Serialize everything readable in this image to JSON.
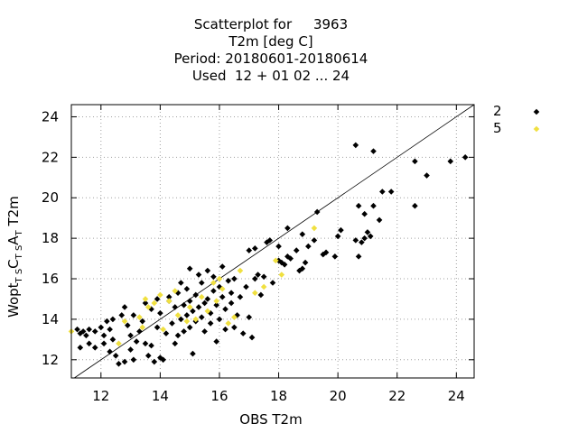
{
  "title": {
    "line1": "Scatterplot for     3963",
    "line2": "T2m [deg C]",
    "line3": "Period: 20180601-20180614",
    "line4": "Used  12 + 01 02 ... 24"
  },
  "colors": {
    "series_2": "#000000",
    "series_5": "#f0e040",
    "grid": "#a0a0a0"
  },
  "chart_data": {
    "type": "scatter",
    "title": "Scatterplot for     3963 / T2m [deg C] / Period: 20180601-20180614 / Used  12 + 01 02 ... 24",
    "xlabel": "OBS T2m",
    "ylabel": {
      "base": "Wopt",
      "sub1": "T S",
      "mid1": "C",
      "sub2": "T S",
      "mid2": "A",
      "sub3": "T",
      "tail": " T2m"
    },
    "xlim": [
      11,
      24.6
    ],
    "ylim": [
      11.1,
      24.6
    ],
    "xticks": [
      "12",
      "14",
      "16",
      "18",
      "20",
      "22",
      "24"
    ],
    "yticks": [
      "12",
      "14",
      "16",
      "18",
      "20",
      "22",
      "24"
    ],
    "grid": true,
    "diagonal": true,
    "legend_position": "top-right outside",
    "series": [
      {
        "name": "2",
        "marker": "diamond",
        "points": [
          [
            11.2,
            13.5
          ],
          [
            11.3,
            13.3
          ],
          [
            11.4,
            13.4
          ],
          [
            11.5,
            13.2
          ],
          [
            11.6,
            13.5
          ],
          [
            11.8,
            13.4
          ],
          [
            11.3,
            12.6
          ],
          [
            11.6,
            12.8
          ],
          [
            11.8,
            12.6
          ],
          [
            12.0,
            13.6
          ],
          [
            12.1,
            13.2
          ],
          [
            12.2,
            13.9
          ],
          [
            12.3,
            13.5
          ],
          [
            12.4,
            14.0
          ],
          [
            12.1,
            12.8
          ],
          [
            12.3,
            12.4
          ],
          [
            12.5,
            12.2
          ],
          [
            12.6,
            11.8
          ],
          [
            12.8,
            11.9
          ],
          [
            12.4,
            13.0
          ],
          [
            12.7,
            14.2
          ],
          [
            12.8,
            14.6
          ],
          [
            12.9,
            13.7
          ],
          [
            13.0,
            13.2
          ],
          [
            13.0,
            12.5
          ],
          [
            13.1,
            12.0
          ],
          [
            13.2,
            12.9
          ],
          [
            13.3,
            13.4
          ],
          [
            13.1,
            14.2
          ],
          [
            13.4,
            13.9
          ],
          [
            13.5,
            12.8
          ],
          [
            13.6,
            12.2
          ],
          [
            13.7,
            12.7
          ],
          [
            13.8,
            11.9
          ],
          [
            13.5,
            14.8
          ],
          [
            13.7,
            14.5
          ],
          [
            13.9,
            13.6
          ],
          [
            13.9,
            15.0
          ],
          [
            14.0,
            14.3
          ],
          [
            14.0,
            12.1
          ],
          [
            14.1,
            12.0
          ],
          [
            14.2,
            13.3
          ],
          [
            14.3,
            14.9
          ],
          [
            14.3,
            15.1
          ],
          [
            14.4,
            13.8
          ],
          [
            14.5,
            14.6
          ],
          [
            14.5,
            12.8
          ],
          [
            14.6,
            15.3
          ],
          [
            14.6,
            13.2
          ],
          [
            14.7,
            14.0
          ],
          [
            14.7,
            15.8
          ],
          [
            14.8,
            14.7
          ],
          [
            14.8,
            13.4
          ],
          [
            14.9,
            14.2
          ],
          [
            14.9,
            15.5
          ],
          [
            15.0,
            16.5
          ],
          [
            15.0,
            14.9
          ],
          [
            15.0,
            13.6
          ],
          [
            15.1,
            14.4
          ],
          [
            15.1,
            12.3
          ],
          [
            15.2,
            15.2
          ],
          [
            15.2,
            13.9
          ],
          [
            15.3,
            16.2
          ],
          [
            15.3,
            14.6
          ],
          [
            15.4,
            14.1
          ],
          [
            15.4,
            15.8
          ],
          [
            15.5,
            13.4
          ],
          [
            15.5,
            14.8
          ],
          [
            15.6,
            16.4
          ],
          [
            15.6,
            15.0
          ],
          [
            15.7,
            14.3
          ],
          [
            15.7,
            13.8
          ],
          [
            15.8,
            16.1
          ],
          [
            15.8,
            15.4
          ],
          [
            15.9,
            14.7
          ],
          [
            15.9,
            12.9
          ],
          [
            16.0,
            15.6
          ],
          [
            16.0,
            14.0
          ],
          [
            16.1,
            16.6
          ],
          [
            16.1,
            15.1
          ],
          [
            16.2,
            14.5
          ],
          [
            16.2,
            13.5
          ],
          [
            16.3,
            15.9
          ],
          [
            16.4,
            15.3
          ],
          [
            16.4,
            14.8
          ],
          [
            16.5,
            13.6
          ],
          [
            16.5,
            16.0
          ],
          [
            16.6,
            14.2
          ],
          [
            16.7,
            15.1
          ],
          [
            16.8,
            13.3
          ],
          [
            16.9,
            15.6
          ],
          [
            17.0,
            14.1
          ],
          [
            17.0,
            17.4
          ],
          [
            17.1,
            13.1
          ],
          [
            17.2,
            17.5
          ],
          [
            17.2,
            16.0
          ],
          [
            17.3,
            16.2
          ],
          [
            17.4,
            15.2
          ],
          [
            17.5,
            16.1
          ],
          [
            17.6,
            17.8
          ],
          [
            17.7,
            17.9
          ],
          [
            17.8,
            15.8
          ],
          [
            18.0,
            16.9
          ],
          [
            18.0,
            17.6
          ],
          [
            18.1,
            16.8
          ],
          [
            18.2,
            16.7
          ],
          [
            18.3,
            17.1
          ],
          [
            18.3,
            18.5
          ],
          [
            18.4,
            17.0
          ],
          [
            18.6,
            17.4
          ],
          [
            18.7,
            16.4
          ],
          [
            18.8,
            16.5
          ],
          [
            18.8,
            18.2
          ],
          [
            18.9,
            16.8
          ],
          [
            19.0,
            17.6
          ],
          [
            19.2,
            17.9
          ],
          [
            19.3,
            19.3
          ],
          [
            19.5,
            17.2
          ],
          [
            19.6,
            17.3
          ],
          [
            19.9,
            17.1
          ],
          [
            20.0,
            18.1
          ],
          [
            20.1,
            18.4
          ],
          [
            20.6,
            17.9
          ],
          [
            20.7,
            17.1
          ],
          [
            20.8,
            17.8
          ],
          [
            20.9,
            18.0
          ],
          [
            21.0,
            18.3
          ],
          [
            21.1,
            18.1
          ],
          [
            20.6,
            22.6
          ],
          [
            21.2,
            22.3
          ],
          [
            20.7,
            19.6
          ],
          [
            20.9,
            19.2
          ],
          [
            21.2,
            19.6
          ],
          [
            21.4,
            18.9
          ],
          [
            21.5,
            20.3
          ],
          [
            21.8,
            20.3
          ],
          [
            22.6,
            21.8
          ],
          [
            22.6,
            19.6
          ],
          [
            23.0,
            21.1
          ],
          [
            23.8,
            21.8
          ],
          [
            24.3,
            22.0
          ]
        ]
      },
      {
        "name": "5",
        "marker": "diamond",
        "points": [
          [
            11.0,
            13.4
          ],
          [
            12.6,
            12.8
          ],
          [
            12.8,
            13.9
          ],
          [
            13.3,
            14.1
          ],
          [
            13.4,
            13.6
          ],
          [
            13.5,
            15.0
          ],
          [
            13.6,
            14.6
          ],
          [
            13.8,
            14.8
          ],
          [
            14.0,
            15.2
          ],
          [
            14.1,
            13.5
          ],
          [
            14.3,
            14.9
          ],
          [
            14.5,
            15.4
          ],
          [
            14.6,
            14.2
          ],
          [
            14.9,
            13.9
          ],
          [
            15.0,
            14.6
          ],
          [
            15.2,
            14.0
          ],
          [
            15.4,
            15.1
          ],
          [
            15.6,
            14.4
          ],
          [
            15.8,
            15.8
          ],
          [
            15.9,
            14.9
          ],
          [
            16.0,
            16.0
          ],
          [
            16.1,
            15.5
          ],
          [
            16.3,
            13.8
          ],
          [
            16.5,
            14.1
          ],
          [
            16.7,
            16.4
          ],
          [
            17.2,
            15.3
          ],
          [
            17.5,
            15.6
          ],
          [
            17.9,
            16.9
          ],
          [
            19.2,
            18.5
          ],
          [
            18.1,
            16.2
          ]
        ]
      }
    ]
  }
}
